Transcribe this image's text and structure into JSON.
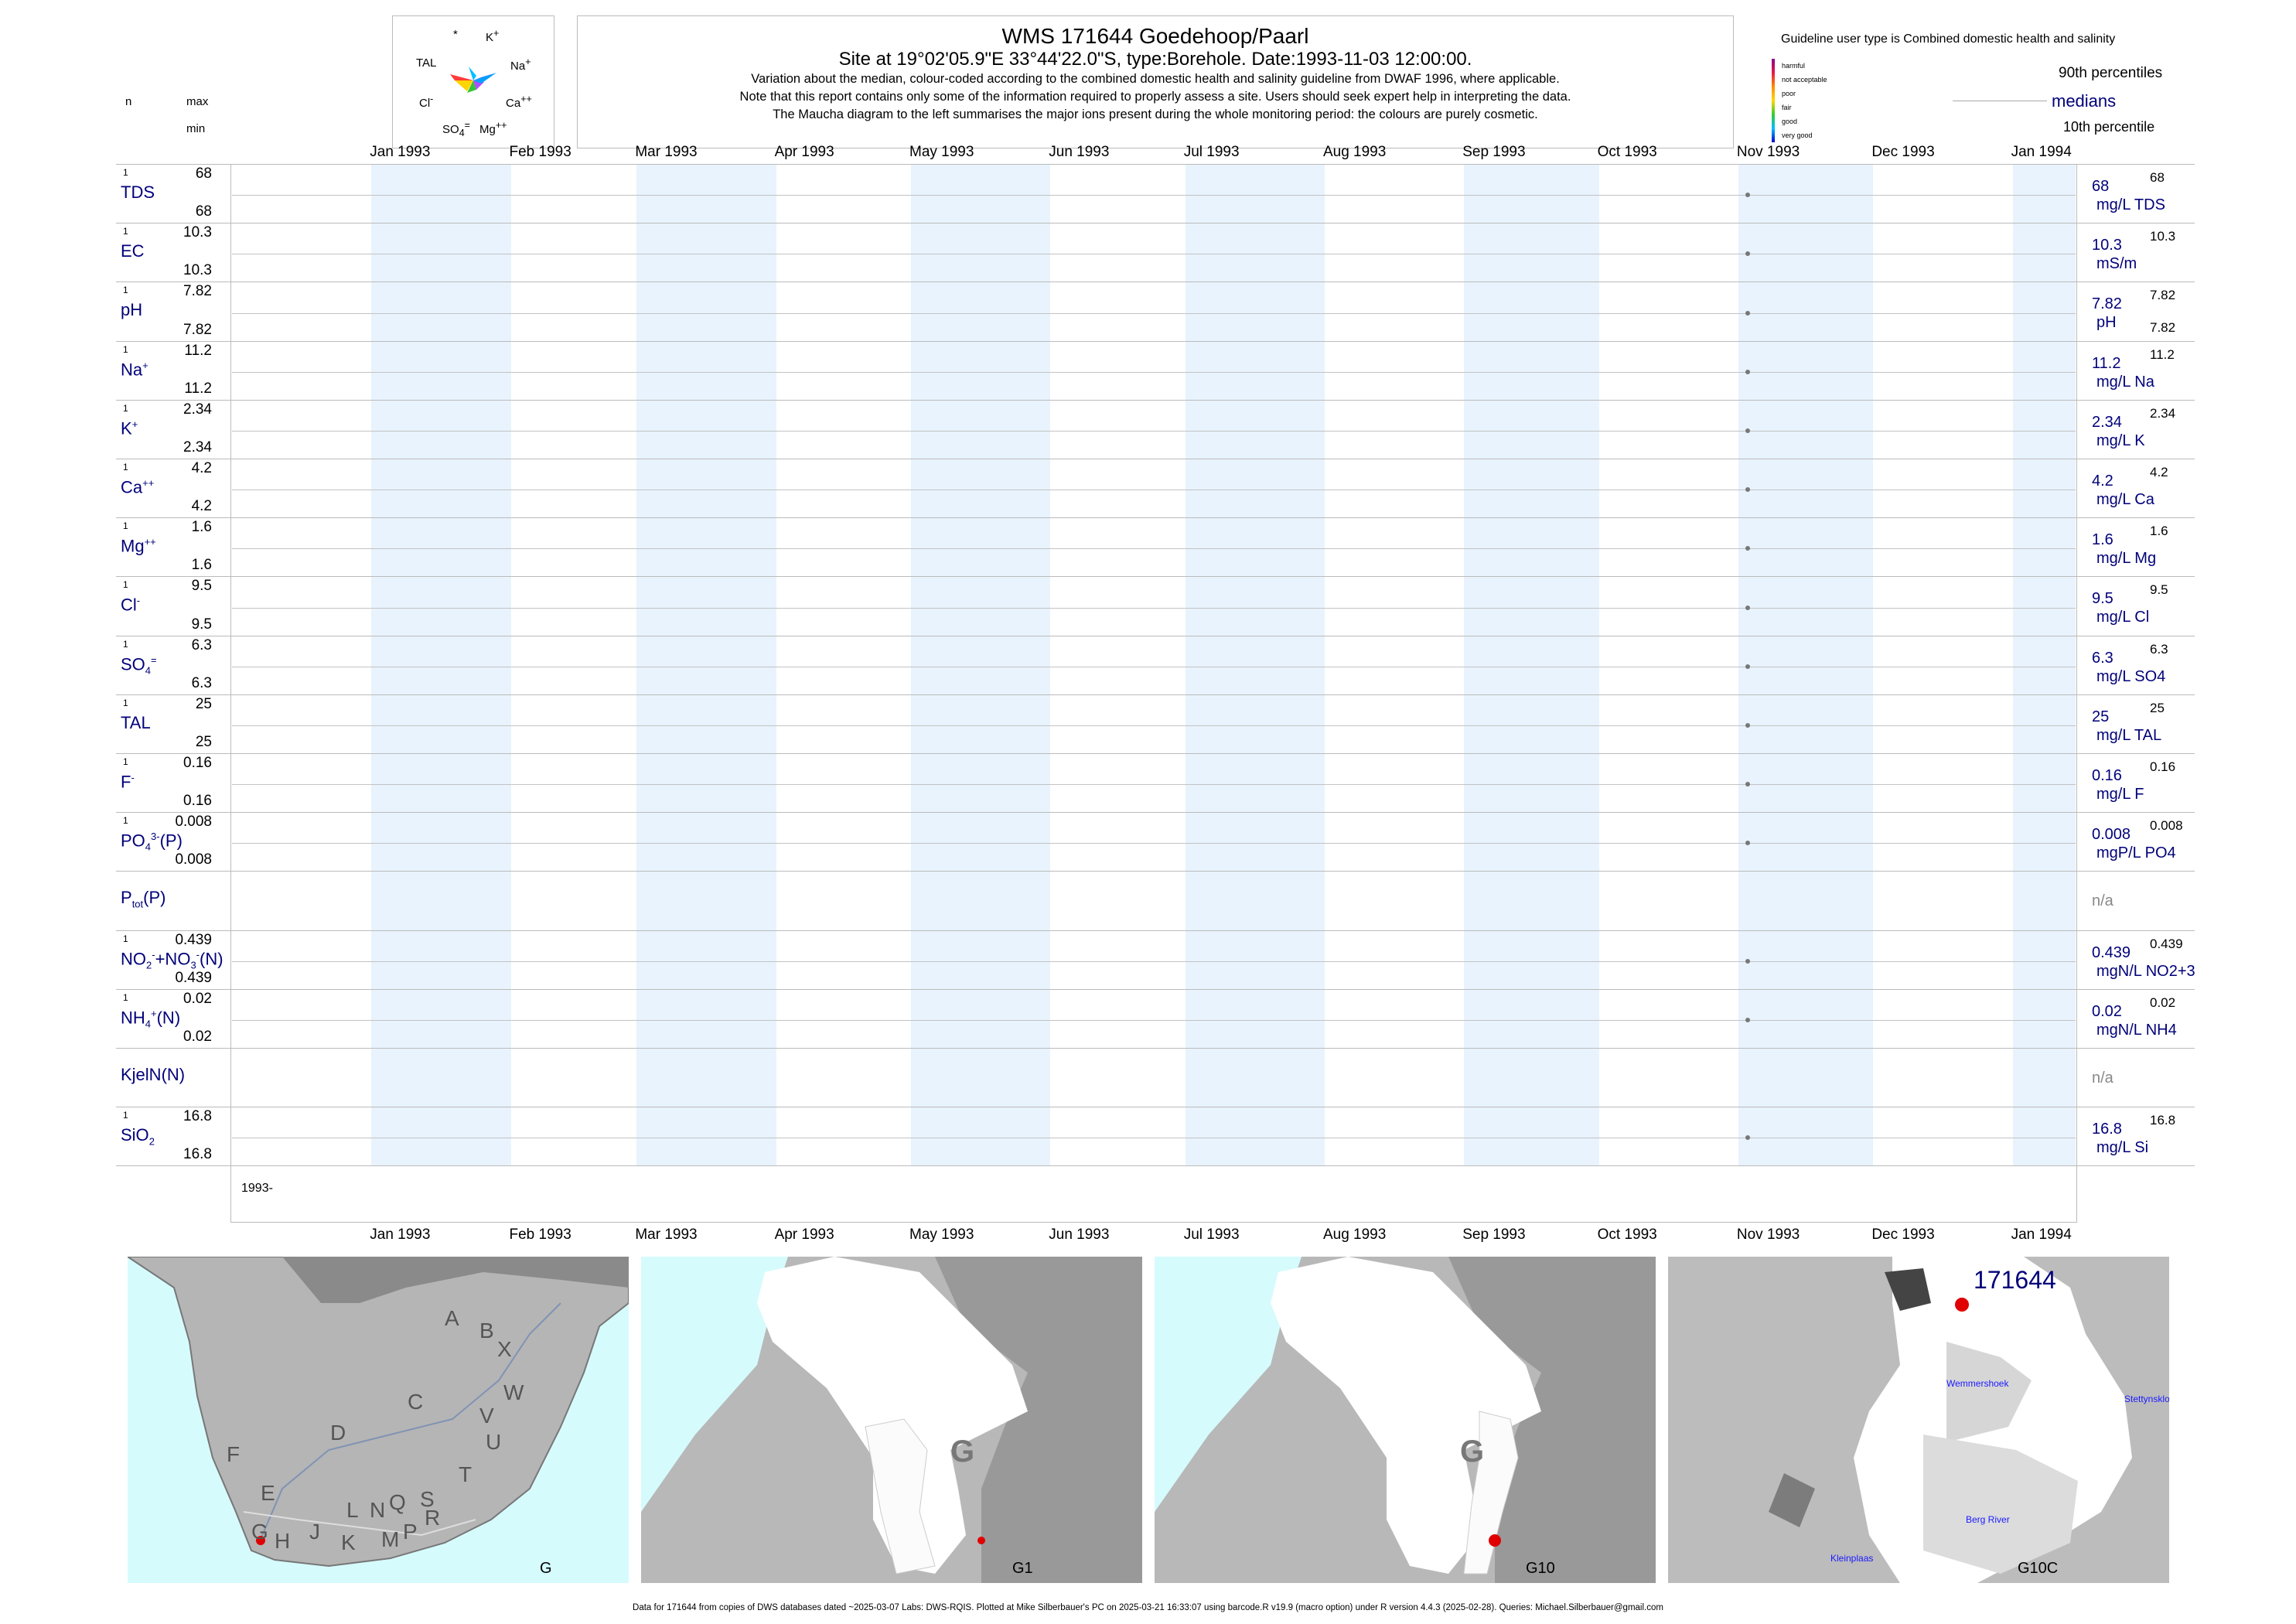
{
  "header": {
    "title": "WMS 171644  Goedehoop/Paarl",
    "subtitle": "Site at 19°02'05.9\"E 33°44'22.0\"S, type:Borehole. Date:1993-11-03 12:00:00.",
    "note1": "Variation about the median,  colour-coded according to the combined domestic health and salinity guideline from DWAF 1996, where applicable.",
    "note2": "Note that this report contains only some of the information required to properly assess a site. Users should seek expert help in interpreting the data.",
    "note3": "The Maucha diagram to the left summarises the major ions present during the whole monitoring period: the colours are purely cosmetic."
  },
  "maucha": {
    "labels": {
      "star": "*",
      "k": "K",
      "na": "Na",
      "ca": "Ca",
      "mg": "Mg",
      "so4": "SO",
      "cl": "Cl",
      "tal": "TAL"
    },
    "colors": [
      "#ff3b3b",
      "#ffd400",
      "#35c435",
      "#00bfff",
      "#3a4cff",
      "#b14cff",
      "#ff8c00",
      "#ffe066"
    ]
  },
  "legend": {
    "title": "Guideline user type is Combined domestic health and salinity",
    "categories": [
      "harmful",
      "not acceptable",
      "poor",
      "fair",
      "good",
      "very good"
    ],
    "p90": "90th percentiles",
    "medians": "medians",
    "p10": "10th percentile"
  },
  "columns": {
    "n": "n",
    "max": "max",
    "min": "min"
  },
  "months": [
    "Jan 1993",
    "Feb 1993",
    "Mar 1993",
    "Apr 1993",
    "May 1993",
    "Jun 1993",
    "Jul 1993",
    "Aug 1993",
    "Sep 1993",
    "Oct 1993",
    "Nov 1993",
    "Dec 1993",
    "Jan 1994"
  ],
  "year_label": "1993-",
  "chart_data": {
    "type": "scatter",
    "x_dates": [
      "1993-11-03"
    ],
    "x_range": [
      "1992-12-01",
      "1994-01-15"
    ],
    "series": [
      {
        "key": "TDS",
        "n": "1",
        "max": "68",
        "min": "68",
        "value": "68",
        "unit": "mg/L TDS",
        "r_max": "68",
        "r_min": "",
        "y": 68
      },
      {
        "key": "EC",
        "n": "1",
        "max": "10.3",
        "min": "10.3",
        "value": "10.3",
        "unit": "mS/m",
        "r_max": "10.3",
        "r_min": "",
        "y": 10.3
      },
      {
        "key": "pH",
        "n": "1",
        "max": "7.82",
        "min": "7.82",
        "value": "7.82",
        "unit": "pH",
        "r_max": "7.82",
        "r_min": "7.82",
        "y": 7.82
      },
      {
        "key": "Na",
        "n": "1",
        "max": "11.2",
        "min": "11.2",
        "value": "11.2",
        "unit": "mg/L Na",
        "r_max": "11.2",
        "r_min": "",
        "y": 11.2
      },
      {
        "key": "K",
        "n": "1",
        "max": "2.34",
        "min": "2.34",
        "value": "2.34",
        "unit": "mg/L K",
        "r_max": "2.34",
        "r_min": "",
        "y": 2.34
      },
      {
        "key": "Ca",
        "n": "1",
        "max": "4.2",
        "min": "4.2",
        "value": "4.2",
        "unit": "mg/L Ca",
        "r_max": "4.2",
        "r_min": "",
        "y": 4.2
      },
      {
        "key": "Mg",
        "n": "1",
        "max": "1.6",
        "min": "1.6",
        "value": "1.6",
        "unit": "mg/L Mg",
        "r_max": "1.6",
        "r_min": "",
        "y": 1.6
      },
      {
        "key": "Cl",
        "n": "1",
        "max": "9.5",
        "min": "9.5",
        "value": "9.5",
        "unit": "mg/L Cl",
        "r_max": "9.5",
        "r_min": "",
        "y": 9.5
      },
      {
        "key": "SO4",
        "n": "1",
        "max": "6.3",
        "min": "6.3",
        "value": "6.3",
        "unit": "mg/L SO4",
        "r_max": "6.3",
        "r_min": "",
        "y": 6.3
      },
      {
        "key": "TAL",
        "n": "1",
        "max": "25",
        "min": "25",
        "value": "25",
        "unit": "mg/L TAL",
        "r_max": "25",
        "r_min": "",
        "y": 25
      },
      {
        "key": "F",
        "n": "1",
        "max": "0.16",
        "min": "0.16",
        "value": "0.16",
        "unit": "mg/L F",
        "r_max": "0.16",
        "r_min": "",
        "y": 0.16
      },
      {
        "key": "PO4",
        "n": "1",
        "max": "0.008",
        "min": "0.008",
        "value": "0.008",
        "unit": "mgP/L PO4",
        "r_max": "0.008",
        "r_min": "",
        "y": 0.008
      },
      {
        "key": "Ptot",
        "n": "",
        "max": "",
        "min": "",
        "value": "n/a",
        "unit": "",
        "r_max": "",
        "r_min": "",
        "y": null
      },
      {
        "key": "NO3",
        "n": "1",
        "max": "0.439",
        "min": "0.439",
        "value": "0.439",
        "unit": "mgN/L NO2+3",
        "r_max": "0.439",
        "r_min": "",
        "y": 0.439
      },
      {
        "key": "NH4",
        "n": "1",
        "max": "0.02",
        "min": "0.02",
        "value": "0.02",
        "unit": "mgN/L NH4",
        "r_max": "0.02",
        "r_min": "",
        "y": 0.02
      },
      {
        "key": "KjelN",
        "n": "",
        "max": "",
        "min": "",
        "value": "n/a",
        "unit": "",
        "r_max": "",
        "r_min": "",
        "y": null
      },
      {
        "key": "SiO2",
        "n": "1",
        "max": "16.8",
        "min": "16.8",
        "value": "16.8",
        "unit": "mg/L Si",
        "r_max": "16.8",
        "r_min": "",
        "y": 16.8
      }
    ]
  },
  "maps": [
    {
      "caption": "G",
      "letters": [
        "A",
        "B",
        "X",
        "W",
        "C",
        "V",
        "U",
        "D",
        "T",
        "F",
        "E",
        "L",
        "N",
        "Q",
        "S",
        "R",
        "J",
        "G",
        "H",
        "K",
        "M",
        "P"
      ]
    },
    {
      "caption": "G1",
      "region": "G"
    },
    {
      "caption": "G10",
      "region": "G"
    },
    {
      "caption": "G10C",
      "site": "171644",
      "places": [
        "Wemmershoek",
        "Stettynskloof",
        "Berg River",
        "Kleinplaas"
      ]
    }
  ],
  "footer": "Data for 171644 from copies of DWS databases dated ~2025-03-07 Labs: DWS-RQIS. Plotted at Mike Silberbauer's PC on 2025-03-21 16:33:07 using barcode.R v19.9 (macro option) under R version 4.4.3 (2025-02-28). Queries: Michael.Silberbauer@gmail.com"
}
